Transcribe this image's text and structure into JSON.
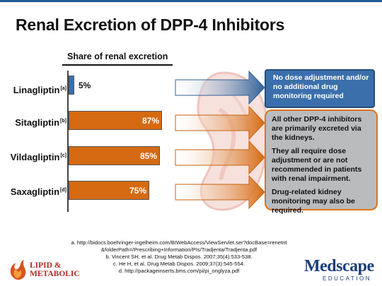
{
  "title": "Renal Excretion of DPP-4 Inhibitors",
  "chart_data": {
    "type": "bar",
    "orientation": "horizontal",
    "subtitle": "Share of renal excretion",
    "categories": [
      "Linagliptin",
      "Sitagliptin",
      "Vildagliptin",
      "Saxagliptin"
    ],
    "footnote_markers": [
      "[a]",
      "[b]",
      "[c]",
      "[d]"
    ],
    "values": [
      5,
      87,
      85,
      75
    ],
    "value_labels": [
      "5%",
      "87%",
      "85%",
      "75%"
    ],
    "colors": [
      "#3a6fab",
      "#d56a12",
      "#d56a12",
      "#d56a12"
    ],
    "xlim": [
      0,
      100
    ]
  },
  "callouts": {
    "blue": "No dose adjustment and/or no additional drug monitoring required",
    "gray": [
      "All other DPP-4 inhibitors are primarily excreted via the kidneys.",
      "They all require dose adjustment or are not recommended in patients with renal impairment.",
      "Drug-related kidney monitoring may also be required."
    ]
  },
  "references": [
    "a. http://bidocs.boehringer-ingelheim.com/BIWebAccess/ViewServlet.ser?docBase=renetnt&folderPath=/Prescribing+Information/PIs/Tradjenta/Tradjenta.pdf",
    "b. Vincent SH, et al. Drug Metab Dispos. 2007;35(4):533-538.",
    "c. He H, et al. Drug Metab Dispos. 2009;37(3):545-554.",
    "d. http://packageinserts.bms.com/pi/pi_onglyza.pdf"
  ],
  "logos": {
    "left_line1": "LIPID &",
    "left_line2": "METABOLIC",
    "right_main": "Medscape",
    "right_sub": "EDUCATION"
  }
}
